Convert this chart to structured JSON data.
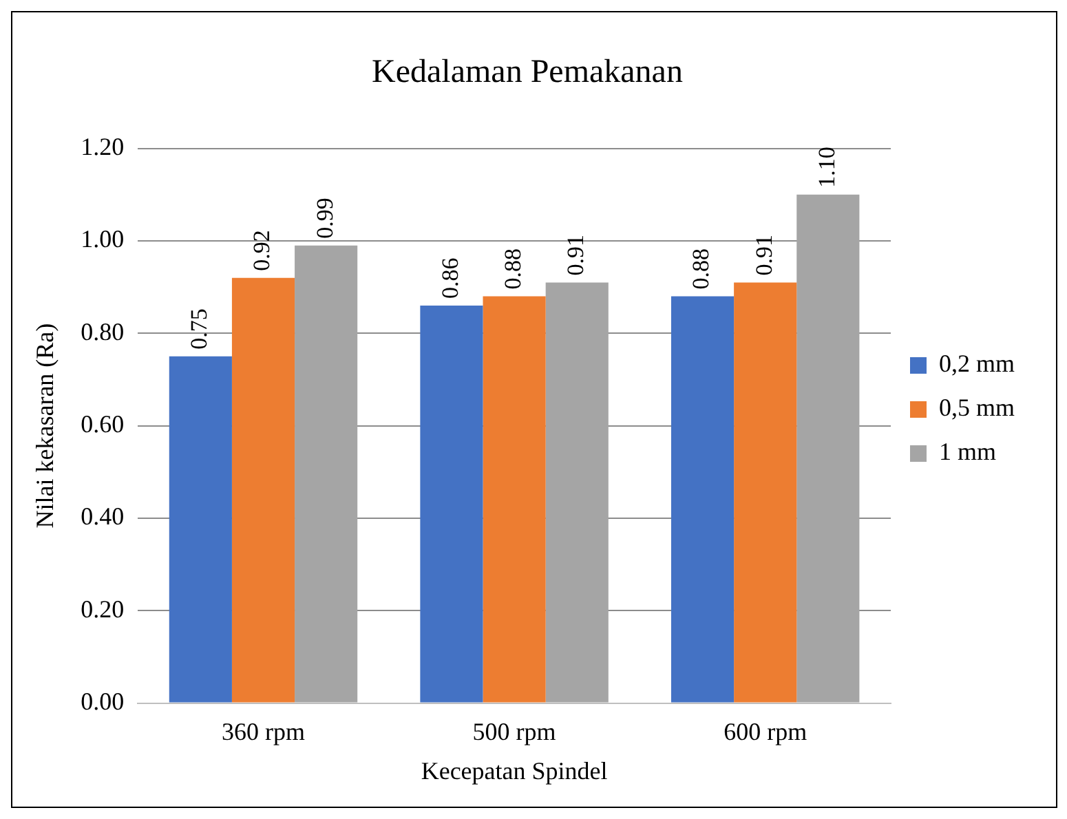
{
  "chart_data": {
    "type": "bar",
    "title": "Kedalaman Pemakanan",
    "xlabel": "Kecepatan Spindel",
    "ylabel": "Nilai kekasaran (Ra)",
    "categories": [
      "360 rpm",
      "500 rpm",
      "600 rpm"
    ],
    "series": [
      {
        "name": "0,2 mm",
        "color": "#4472c4",
        "values": [
          0.75,
          0.86,
          0.88
        ],
        "value_labels": [
          "0.75",
          "0.86",
          "0.88"
        ]
      },
      {
        "name": "0,5 mm",
        "color": "#ed7d31",
        "values": [
          0.92,
          0.88,
          0.91
        ],
        "value_labels": [
          "0.92",
          "0.88",
          "0.91"
        ]
      },
      {
        "name": "1 mm",
        "color": "#a5a5a5",
        "values": [
          0.99,
          0.91,
          1.1
        ],
        "value_labels": [
          "0.99",
          "0.91",
          "1.10"
        ]
      }
    ],
    "ylim": [
      0,
      1.2
    ],
    "yticks": [
      {
        "value": 0,
        "label": "0.00"
      },
      {
        "value": 0.2,
        "label": "0.20"
      },
      {
        "value": 0.4,
        "label": "0.40"
      },
      {
        "value": 0.6,
        "label": "0.60"
      },
      {
        "value": 0.8,
        "label": "0.80"
      },
      {
        "value": 1.0,
        "label": "1.00"
      },
      {
        "value": 1.2,
        "label": "1.20"
      }
    ],
    "grid": "y",
    "legend": "right"
  }
}
